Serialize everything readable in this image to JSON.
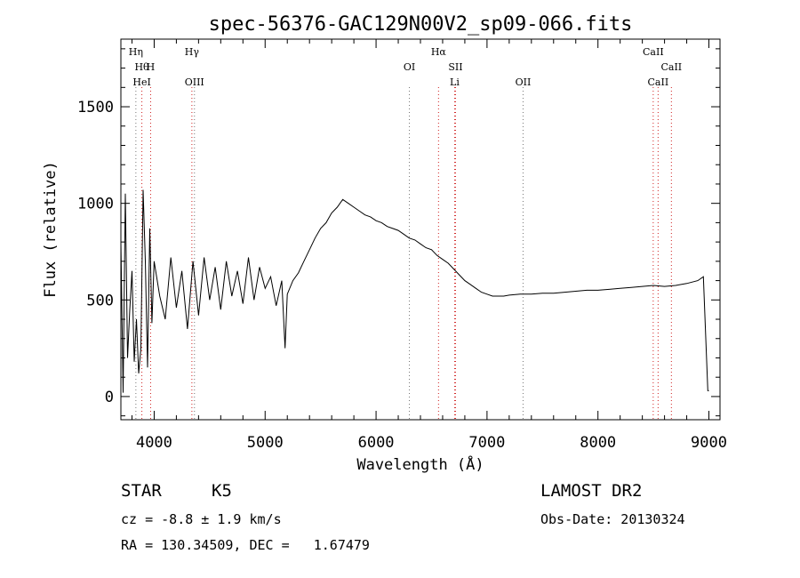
{
  "chart_data": {
    "type": "line",
    "title": "spec-56376-GAC129N00V2_sp09-066.fits",
    "xlabel": "Wavelength (Å)",
    "ylabel": "Flux (relative)",
    "xlim": [
      3700,
      9100
    ],
    "ylim": [
      -120,
      1850
    ],
    "x_ticks": [
      4000,
      5000,
      6000,
      7000,
      8000,
      9000
    ],
    "y_ticks": [
      0,
      500,
      1000,
      1500
    ],
    "x_tick_labels": [
      "4000",
      "5000",
      "6000",
      "7000",
      "8000",
      "9000"
    ],
    "y_tick_labels": [
      "0",
      "500",
      "1000",
      "1500"
    ],
    "series": [
      {
        "x": [
          3700,
          3720,
          3740,
          3760,
          3780,
          3800,
          3820,
          3840,
          3860,
          3880,
          3900,
          3920,
          3940,
          3960,
          3980,
          4000,
          4050,
          4100,
          4150,
          4200,
          4250,
          4300,
          4350,
          4400,
          4450,
          4500,
          4550,
          4600,
          4650,
          4700,
          4750,
          4800,
          4850,
          4900,
          4950,
          5000,
          5050,
          5100,
          5150,
          5180,
          5200,
          5250,
          5300,
          5350,
          5400,
          5450,
          5500,
          5550,
          5600,
          5650,
          5700,
          5750,
          5800,
          5850,
          5900,
          5950,
          6000,
          6050,
          6100,
          6150,
          6200,
          6250,
          6300,
          6350,
          6400,
          6450,
          6500,
          6550,
          6600,
          6650,
          6700,
          6750,
          6800,
          6850,
          6900,
          6950,
          7000,
          7050,
          7100,
          7150,
          7200,
          7300,
          7400,
          7500,
          7600,
          7700,
          7800,
          7900,
          8000,
          8100,
          8200,
          8300,
          8400,
          8500,
          8600,
          8700,
          8800,
          8900,
          8950,
          8990,
          9000
        ],
        "y": [
          800,
          20,
          1050,
          200,
          450,
          650,
          180,
          400,
          120,
          250,
          1070,
          700,
          150,
          870,
          380,
          700,
          520,
          400,
          720,
          460,
          650,
          350,
          700,
          420,
          720,
          500,
          670,
          450,
          700,
          520,
          650,
          480,
          720,
          500,
          670,
          560,
          620,
          470,
          600,
          250,
          530,
          600,
          640,
          700,
          760,
          820,
          870,
          900,
          950,
          980,
          1020,
          1000,
          980,
          960,
          940,
          930,
          910,
          900,
          880,
          870,
          860,
          840,
          820,
          810,
          790,
          770,
          760,
          730,
          710,
          690,
          660,
          630,
          600,
          580,
          560,
          540,
          530,
          520,
          520,
          520,
          525,
          530,
          530,
          535,
          535,
          540,
          545,
          550,
          550,
          555,
          560,
          565,
          570,
          575,
          570,
          575,
          585,
          600,
          620,
          30,
          30
        ]
      }
    ],
    "line_annotations_top": [
      {
        "wavelength": 3835,
        "label": "Hη"
      },
      {
        "wavelength": 4340,
        "label": "Hγ"
      },
      {
        "wavelength": 6563,
        "label": "Hα"
      },
      {
        "wavelength": 8498,
        "label": "CaII"
      }
    ],
    "line_annotations_mid": [
      {
        "wavelength": 3889,
        "label": "Hθ"
      },
      {
        "wavelength": 3968,
        "label": "H"
      },
      {
        "wavelength": 6300,
        "label": "OI"
      },
      {
        "wavelength": 6716,
        "label": "SII"
      },
      {
        "wavelength": 8662,
        "label": "CaII"
      }
    ],
    "line_annotations_low": [
      {
        "wavelength": 3889,
        "label": "HeI"
      },
      {
        "wavelength": 4363,
        "label": "OIII"
      },
      {
        "wavelength": 6708,
        "label": "Li"
      },
      {
        "wavelength": 7325,
        "label": "OII"
      },
      {
        "wavelength": 8542,
        "label": "CaII"
      }
    ]
  },
  "info": {
    "class_label": "STAR",
    "subclass": "K5",
    "survey": "LAMOST DR2",
    "cz_line": "cz = -8.8 ± 1.9 km/s",
    "obsdate_line": "Obs-Date: 20130324",
    "radec_line": "RA = 130.34509, DEC =   1.67479"
  }
}
